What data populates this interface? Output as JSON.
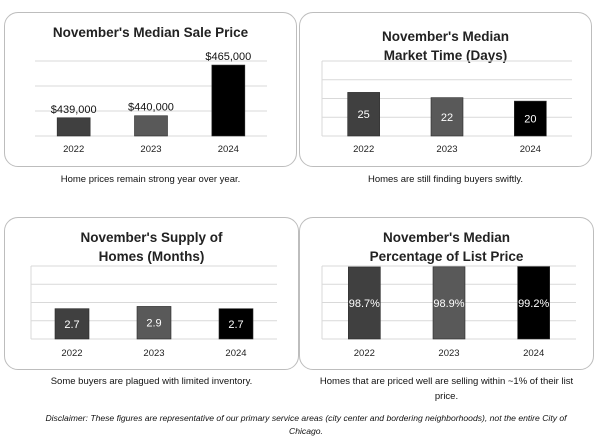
{
  "chart_data": [
    {
      "type": "bar",
      "title": "November's Median Sale Price",
      "categories": [
        "2022",
        "2023",
        "2024"
      ],
      "values": [
        439000,
        440000,
        465000
      ],
      "value_labels": [
        "$439,000",
        "$440,000",
        "$465,000"
      ],
      "label_position": "above",
      "bar_colors": [
        "#404040",
        "#595959",
        "#000000"
      ],
      "ylim": [
        430000,
        467000
      ],
      "grid": true,
      "caption": "Home prices remain strong year over year."
    },
    {
      "type": "bar",
      "title": "November's Median Market Time (Days)",
      "categories": [
        "2022",
        "2023",
        "2024"
      ],
      "values": [
        25,
        22,
        20
      ],
      "value_labels": [
        "25",
        "22",
        "20"
      ],
      "label_position": "inside",
      "bar_colors": [
        "#404040",
        "#595959",
        "#000000"
      ],
      "ylim": [
        0,
        43
      ],
      "grid": true,
      "caption": "Homes are still finding buyers swiftly."
    },
    {
      "type": "bar",
      "title": "November's Supply of Homes (Months)",
      "categories": [
        "2022",
        "2023",
        "2024"
      ],
      "values": [
        2.7,
        2.9,
        2.7
      ],
      "value_labels": [
        "2.7",
        "2.9",
        "2.7"
      ],
      "label_position": "inside",
      "bar_colors": [
        "#404040",
        "#595959",
        "#000000"
      ],
      "ylim": [
        0,
        6.5
      ],
      "grid": true,
      "caption": "Some buyers are plagued with limited inventory."
    },
    {
      "type": "bar",
      "title": "November's Median Percentage of List Price",
      "categories": [
        "2022",
        "2023",
        "2024"
      ],
      "values": [
        98.7,
        98.9,
        99.2
      ],
      "value_labels": [
        "98.7%",
        "98.9%",
        "99.2%"
      ],
      "label_position": "inside",
      "bar_colors": [
        "#404040",
        "#595959",
        "#000000"
      ],
      "ylim": [
        0,
        100
      ],
      "grid": true,
      "caption": "Homes that are priced well are selling within ~1% of their list price."
    }
  ],
  "disclaimer": "Disclaimer: These figures are representative of our primary service areas (city center and bordering neighborhoods), not the entire City of Chicago."
}
